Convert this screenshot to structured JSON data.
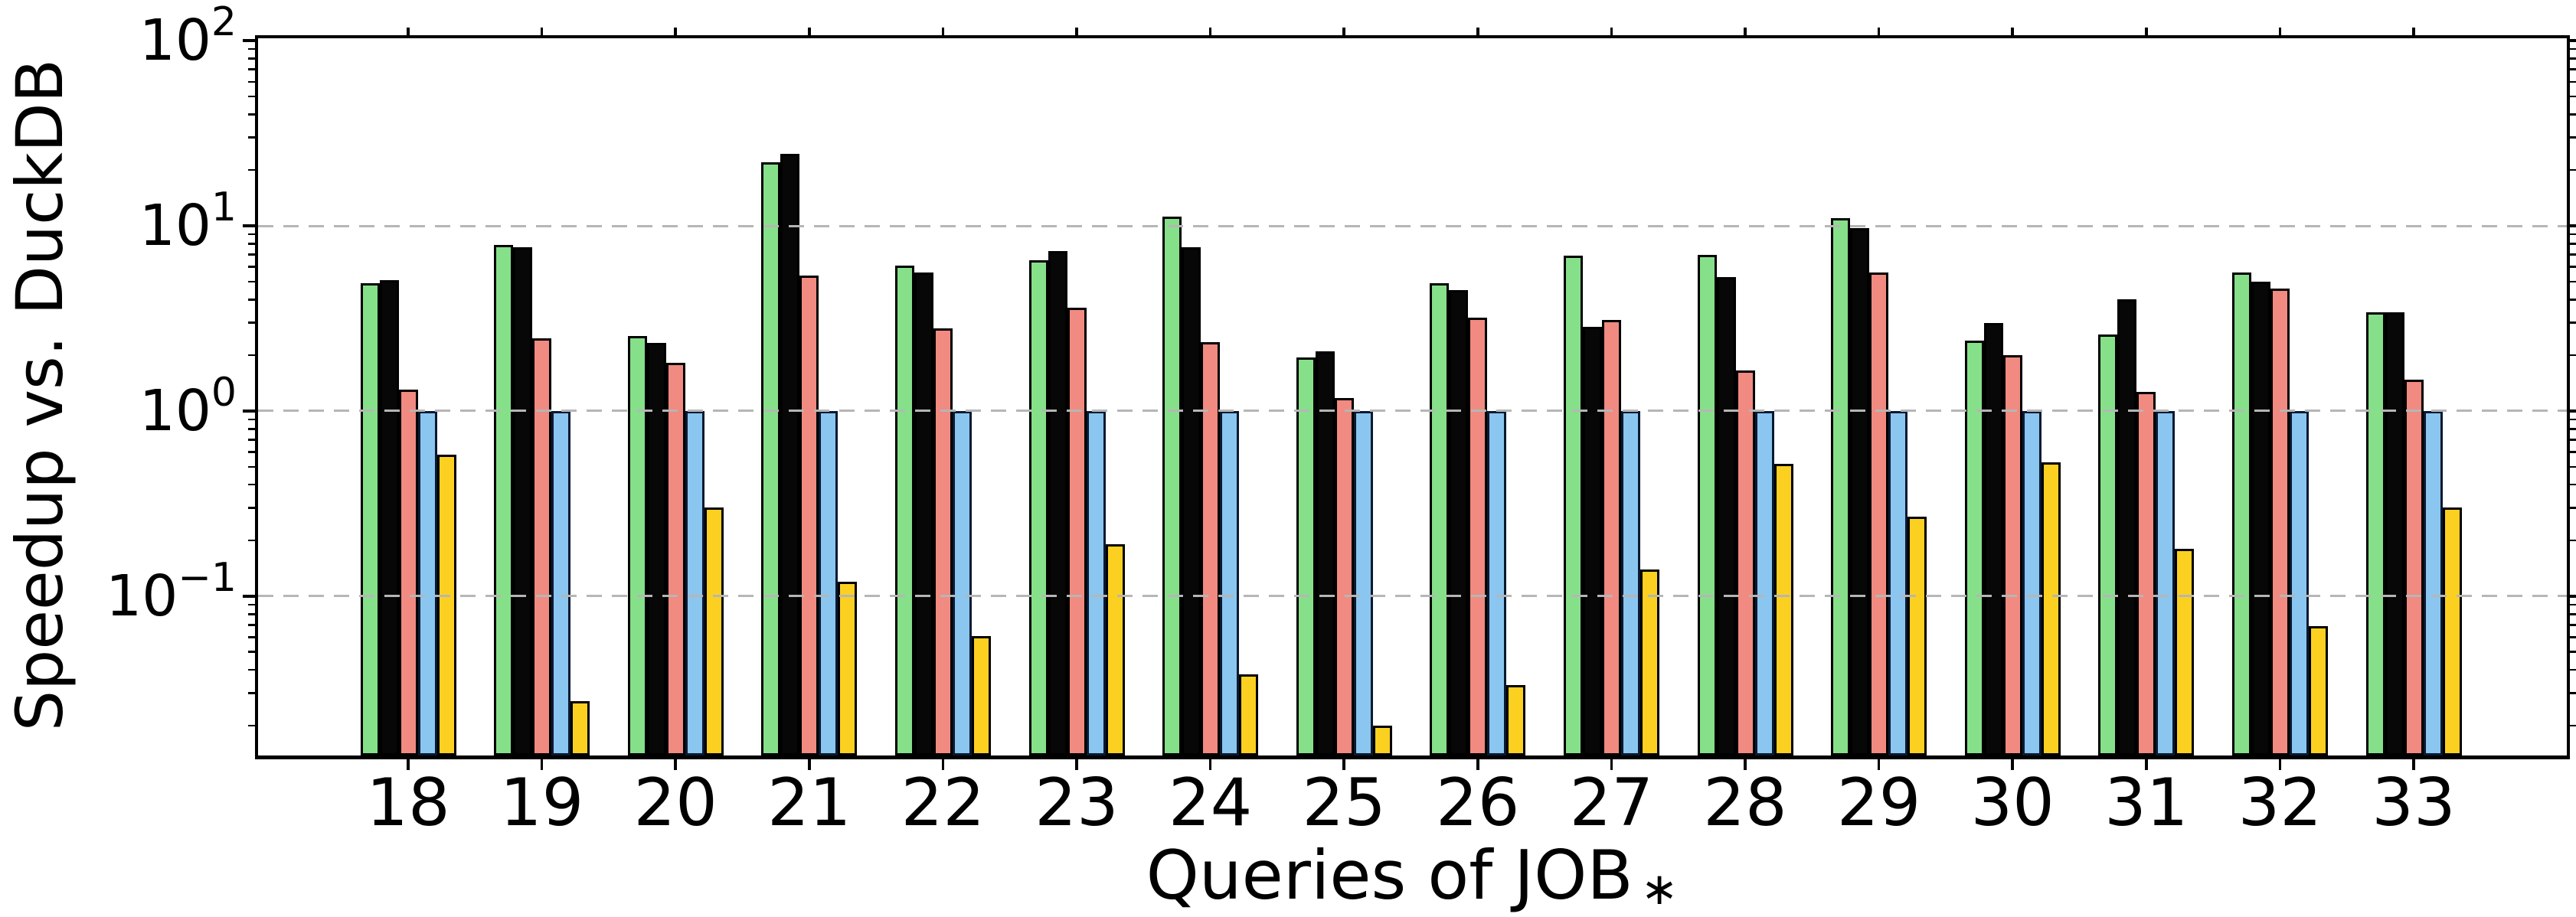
{
  "chart_data": {
    "type": "bar",
    "title": "",
    "xlabel": "Queries of JOB",
    "xlabel_subscript": "∗",
    "ylabel": "Speedup vs. DuckDB",
    "yscale": "log",
    "ylim": [
      0.0138,
      103
    ],
    "grid": "dashed horizontal at decade values",
    "legend": "none",
    "gridline_values": [
      10,
      1,
      0.1
    ],
    "baseline_value": 1.0,
    "categories": [
      "18",
      "19",
      "20",
      "21",
      "22",
      "23",
      "24",
      "25",
      "26",
      "27",
      "28",
      "29",
      "30",
      "31",
      "32",
      "33"
    ],
    "y_ticks": [
      {
        "base": "10",
        "exp": "2",
        "value": 100
      },
      {
        "base": "10",
        "exp": "1",
        "value": 10
      },
      {
        "base": "10",
        "exp": "0",
        "value": 1
      },
      {
        "base": "10",
        "exp": "−1",
        "value": 0.1
      }
    ],
    "series": [
      {
        "name": "green",
        "color": "#86E08A",
        "edge_color": "#000000",
        "values": [
          4.9,
          7.9,
          2.55,
          22.0,
          6.1,
          6.5,
          11.2,
          1.95,
          4.9,
          6.9,
          7.0,
          11.0,
          2.4,
          2.6,
          5.6,
          3.4
        ]
      },
      {
        "name": "black",
        "color": "#070707",
        "edge_color": "#000000",
        "values": [
          5.1,
          7.7,
          2.34,
          24.5,
          5.6,
          7.3,
          7.7,
          2.1,
          4.5,
          2.85,
          5.3,
          9.7,
          3.0,
          4.0,
          5.0,
          3.4
        ]
      },
      {
        "name": "red",
        "color": "#F18A80",
        "edge_color": "#000000",
        "values": [
          1.31,
          2.48,
          1.82,
          5.4,
          2.8,
          3.6,
          2.35,
          1.18,
          3.2,
          3.1,
          1.65,
          5.6,
          2.0,
          1.27,
          4.6,
          1.47
        ]
      },
      {
        "name": "blue",
        "color": "#8AC6F0",
        "edge_color": "#0a1930",
        "values": [
          1.0,
          1.0,
          1.0,
          1.0,
          1.0,
          1.0,
          1.0,
          1.0,
          1.0,
          1.0,
          1.0,
          1.0,
          1.0,
          1.0,
          1.0,
          1.0
        ]
      },
      {
        "name": "yellow",
        "color": "#FCD020",
        "edge_color": "#000000",
        "values": [
          0.58,
          0.027,
          0.3,
          0.12,
          0.061,
          0.19,
          0.038,
          0.02,
          0.033,
          0.14,
          0.52,
          0.27,
          0.53,
          0.18,
          0.069,
          0.3
        ]
      }
    ],
    "style": {
      "grid_color": "#b6b6b6",
      "spine_color": "#000000",
      "background": "#ffffff"
    }
  }
}
